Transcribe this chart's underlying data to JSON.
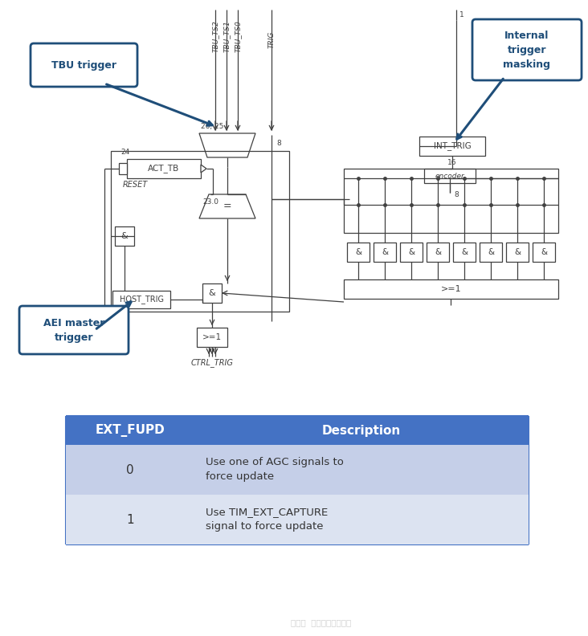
{
  "bg_color": "#ffffff",
  "callout_tbu": "TBU trigger",
  "callout_aei": "AEI master\ntrigger",
  "callout_int": "Internal\ntrigger\nmasking",
  "callout_border_color": "#1f4e79",
  "callout_text_color": "#1f4e79",
  "callout_fill_color": "#ffffff",
  "line_color": "#404040",
  "label_tbu_ts2": "TBU_TS2",
  "label_tbu_ts1": "TBU_TS1",
  "label_tbu_ts0": "TBU_TS0",
  "label_trig": "TRIG",
  "label_int_trig": "INT_TRIG",
  "label_act_tb": "ACT_TB",
  "label_reset": "RESET",
  "label_host_trig": "HOST_TRIG",
  "label_ctrl_trig": "CTRL_TRIG",
  "label_encoder": "encoder",
  "label_26_25": "26, 25",
  "label_24": "24",
  "label_23_0": "23.0",
  "label_8a": "8",
  "label_8b": "8",
  "label_16": "16",
  "label_1": "1",
  "table_header_bg": "#4472c4",
  "table_row1_bg": "#c5cfe8",
  "table_row2_bg": "#dce3f1",
  "table_col1_header": "EXT_FUPD",
  "table_col2_header": "Description",
  "table_rows": [
    [
      "0",
      "Use one of AGC signals to\nforce update"
    ],
    [
      "1",
      "Use TIM_EXT_CAPTURE\nsignal to force update"
    ]
  ],
  "watermark": "公众号  汽车电子学习笔记"
}
